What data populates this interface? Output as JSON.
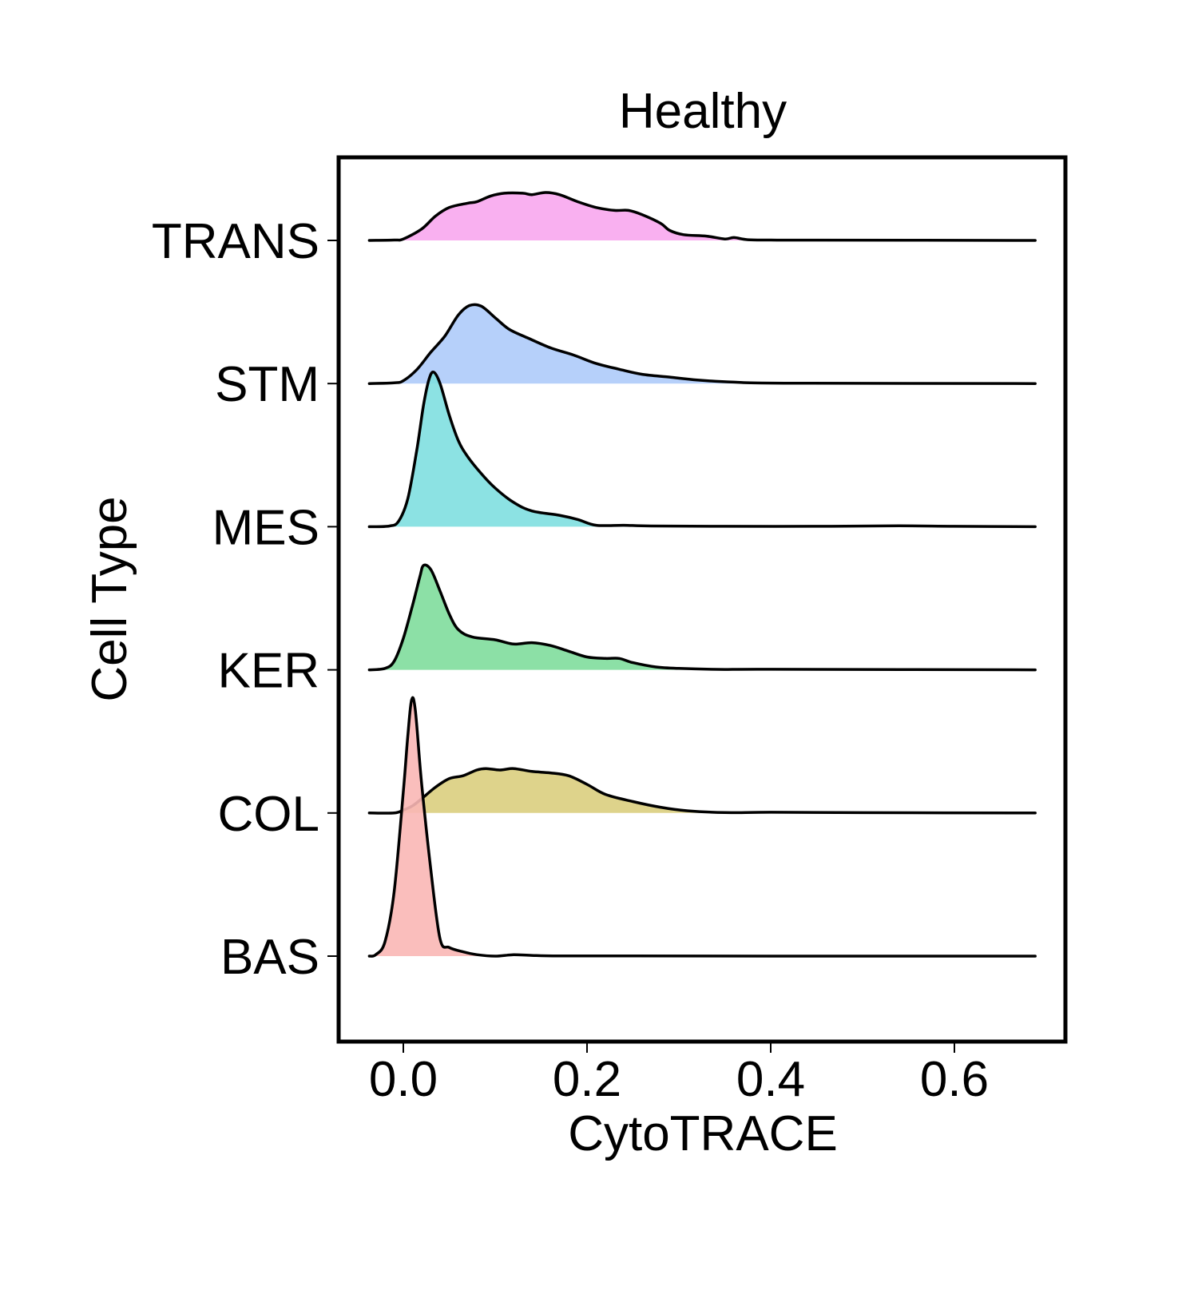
{
  "chart_data": {
    "type": "ridgeline",
    "title": "Healthy",
    "xlabel": "CytoTRACE",
    "ylabel": "Cell Type",
    "xlim": [
      -0.07,
      0.72
    ],
    "xticks": [
      0.0,
      0.2,
      0.4,
      0.6
    ],
    "xtick_labels": [
      "0.0",
      "0.2",
      "0.4",
      "0.6"
    ],
    "grid": false,
    "legend": "none",
    "curve_x_range": [
      -0.037,
      0.688
    ],
    "height_unit_note": "heights are relative density, 1.0 = one row spacing",
    "series": [
      {
        "name": "TRANS",
        "color": "#F8A7EE",
        "points": [
          [
            -0.037,
            0
          ],
          [
            -0.01,
            0.003
          ],
          [
            0.0,
            0.01
          ],
          [
            0.02,
            0.08
          ],
          [
            0.035,
            0.17
          ],
          [
            0.05,
            0.23
          ],
          [
            0.07,
            0.26
          ],
          [
            0.08,
            0.27
          ],
          [
            0.095,
            0.31
          ],
          [
            0.11,
            0.33
          ],
          [
            0.13,
            0.33
          ],
          [
            0.14,
            0.32
          ],
          [
            0.155,
            0.335
          ],
          [
            0.17,
            0.32
          ],
          [
            0.19,
            0.27
          ],
          [
            0.21,
            0.23
          ],
          [
            0.23,
            0.21
          ],
          [
            0.245,
            0.21
          ],
          [
            0.26,
            0.18
          ],
          [
            0.28,
            0.12
          ],
          [
            0.29,
            0.07
          ],
          [
            0.305,
            0.04
          ],
          [
            0.33,
            0.03
          ],
          [
            0.35,
            0.01
          ],
          [
            0.36,
            0.02
          ],
          [
            0.375,
            0.005
          ],
          [
            0.4,
            0.003
          ],
          [
            0.45,
            0.002
          ],
          [
            0.688,
            0
          ]
        ]
      },
      {
        "name": "STM",
        "color": "#AECBFA",
        "points": [
          [
            -0.037,
            0
          ],
          [
            -0.01,
            0.005
          ],
          [
            0.0,
            0.02
          ],
          [
            0.015,
            0.1
          ],
          [
            0.03,
            0.22
          ],
          [
            0.045,
            0.33
          ],
          [
            0.06,
            0.48
          ],
          [
            0.072,
            0.545
          ],
          [
            0.085,
            0.54
          ],
          [
            0.1,
            0.46
          ],
          [
            0.115,
            0.38
          ],
          [
            0.135,
            0.32
          ],
          [
            0.16,
            0.25
          ],
          [
            0.185,
            0.2
          ],
          [
            0.21,
            0.14
          ],
          [
            0.235,
            0.1
          ],
          [
            0.26,
            0.065
          ],
          [
            0.29,
            0.045
          ],
          [
            0.32,
            0.025
          ],
          [
            0.36,
            0.01
          ],
          [
            0.42,
            0.003
          ],
          [
            0.688,
            0
          ]
        ]
      },
      {
        "name": "MES",
        "color": "#80DFE0",
        "points": [
          [
            -0.037,
            0
          ],
          [
            -0.015,
            0.005
          ],
          [
            -0.005,
            0.04
          ],
          [
            0.005,
            0.2
          ],
          [
            0.015,
            0.55
          ],
          [
            0.022,
            0.85
          ],
          [
            0.028,
            1.03
          ],
          [
            0.033,
            1.08
          ],
          [
            0.04,
            1.0
          ],
          [
            0.05,
            0.78
          ],
          [
            0.06,
            0.6
          ],
          [
            0.07,
            0.49
          ],
          [
            0.085,
            0.37
          ],
          [
            0.1,
            0.27
          ],
          [
            0.12,
            0.17
          ],
          [
            0.14,
            0.11
          ],
          [
            0.17,
            0.08
          ],
          [
            0.19,
            0.05
          ],
          [
            0.21,
            0.01
          ],
          [
            0.24,
            0.01
          ],
          [
            0.27,
            0.005
          ],
          [
            0.35,
            0.003
          ],
          [
            0.45,
            0.003
          ],
          [
            0.54,
            0.006
          ],
          [
            0.6,
            0.003
          ],
          [
            0.688,
            0
          ]
        ]
      },
      {
        "name": "KER",
        "color": "#80DD9C",
        "points": [
          [
            -0.037,
            0
          ],
          [
            -0.02,
            0.01
          ],
          [
            -0.01,
            0.06
          ],
          [
            0.0,
            0.22
          ],
          [
            0.01,
            0.45
          ],
          [
            0.018,
            0.65
          ],
          [
            0.022,
            0.73
          ],
          [
            0.03,
            0.7
          ],
          [
            0.04,
            0.55
          ],
          [
            0.05,
            0.39
          ],
          [
            0.06,
            0.28
          ],
          [
            0.075,
            0.23
          ],
          [
            0.1,
            0.21
          ],
          [
            0.12,
            0.18
          ],
          [
            0.14,
            0.19
          ],
          [
            0.16,
            0.17
          ],
          [
            0.18,
            0.13
          ],
          [
            0.2,
            0.09
          ],
          [
            0.22,
            0.08
          ],
          [
            0.235,
            0.08
          ],
          [
            0.25,
            0.05
          ],
          [
            0.275,
            0.02
          ],
          [
            0.3,
            0.01
          ],
          [
            0.35,
            0.003
          ],
          [
            0.4,
            0.004
          ],
          [
            0.688,
            0
          ]
        ]
      },
      {
        "name": "COL",
        "color": "#DACE7E",
        "points": [
          [
            -0.037,
            0
          ],
          [
            -0.01,
            0.0
          ],
          [
            0.0,
            0.02
          ],
          [
            0.01,
            0.05
          ],
          [
            0.02,
            0.1
          ],
          [
            0.035,
            0.18
          ],
          [
            0.05,
            0.24
          ],
          [
            0.065,
            0.26
          ],
          [
            0.08,
            0.3
          ],
          [
            0.09,
            0.31
          ],
          [
            0.105,
            0.3
          ],
          [
            0.12,
            0.31
          ],
          [
            0.14,
            0.29
          ],
          [
            0.16,
            0.28
          ],
          [
            0.18,
            0.26
          ],
          [
            0.2,
            0.2
          ],
          [
            0.22,
            0.13
          ],
          [
            0.25,
            0.08
          ],
          [
            0.28,
            0.04
          ],
          [
            0.31,
            0.015
          ],
          [
            0.35,
            0.003
          ],
          [
            0.4,
            0.005
          ],
          [
            0.5,
            0.002
          ],
          [
            0.688,
            0
          ]
        ]
      },
      {
        "name": "BAS",
        "color": "#F9B7B5",
        "points": [
          [
            -0.037,
            0
          ],
          [
            -0.03,
            0.01
          ],
          [
            -0.02,
            0.1
          ],
          [
            -0.01,
            0.45
          ],
          [
            0.0,
            1.15
          ],
          [
            0.005,
            1.55
          ],
          [
            0.009,
            1.79
          ],
          [
            0.013,
            1.72
          ],
          [
            0.02,
            1.2
          ],
          [
            0.03,
            0.6
          ],
          [
            0.04,
            0.12
          ],
          [
            0.05,
            0.06
          ],
          [
            0.065,
            0.03
          ],
          [
            0.08,
            0.01
          ],
          [
            0.1,
            0.0
          ],
          [
            0.12,
            0.01
          ],
          [
            0.14,
            0.005
          ],
          [
            0.17,
            0.001
          ],
          [
            0.25,
            0.001
          ],
          [
            0.4,
            0.0
          ],
          [
            0.688,
            0
          ]
        ]
      }
    ]
  }
}
